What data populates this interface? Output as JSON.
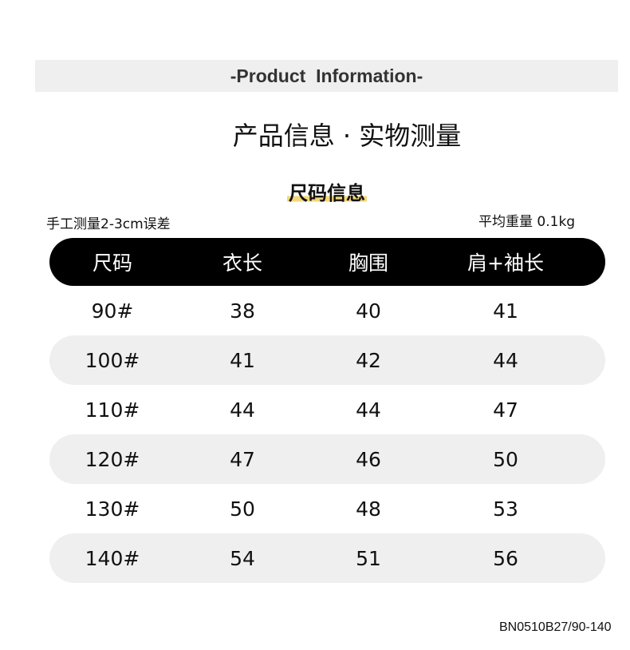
{
  "banner": "-Product  Information-",
  "title": "产品信息 · 实物测量",
  "subtitle": "尺码信息",
  "note_left": "手工测量2-3cm误差",
  "note_right": "平均重量 0.1kg",
  "table": {
    "headers": [
      "尺码",
      "衣长",
      "胸围",
      "肩+袖长"
    ],
    "rows": [
      [
        "90#",
        "38",
        "40",
        "41"
      ],
      [
        "100#",
        "41",
        "42",
        "44"
      ],
      [
        "110#",
        "44",
        "44",
        "47"
      ],
      [
        "120#",
        "47",
        "46",
        "50"
      ],
      [
        "130#",
        "50",
        "48",
        "53"
      ],
      [
        "140#",
        "54",
        "51",
        "56"
      ]
    ]
  },
  "product_code": "BN0510B27/90-140",
  "colors": {
    "header_bg": "#000000",
    "alt_row_bg": "#efefef",
    "highlight": "#f3d77a"
  }
}
